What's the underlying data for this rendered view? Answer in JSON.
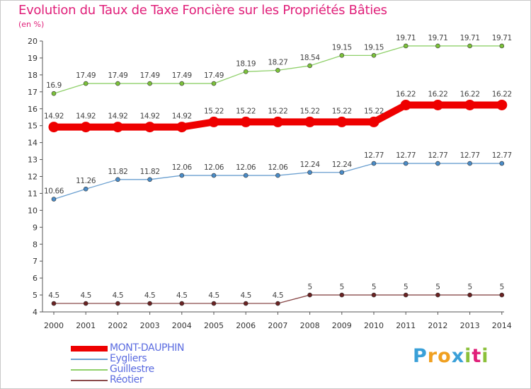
{
  "header": {
    "title": "Evolution du Taux de Taxe Foncière sur les Propriétés Bâties",
    "unit": "(en %)"
  },
  "brand": {
    "letters": [
      "P",
      "r",
      "o",
      "x",
      "i",
      "t",
      "i"
    ],
    "colors": [
      "#3aa0d8",
      "#f0a020",
      "#f0a020",
      "#3aa0d8",
      "#8bc03a",
      "#e0207a",
      "#8bc03a"
    ]
  },
  "chart_data": {
    "type": "line",
    "title": "Evolution du Taux de Taxe Foncière sur les Propriétés Bâties",
    "ylabel": "(en %)",
    "xlabel": "",
    "ylim": [
      4,
      20
    ],
    "yticks": [
      "4",
      "5",
      "6",
      "7",
      "8",
      "9",
      "10",
      "11",
      "12",
      "13",
      "14",
      "15",
      "16",
      "17",
      "18",
      "19",
      "20"
    ],
    "categories": [
      "2000",
      "2001",
      "2002",
      "2003",
      "2004",
      "2005",
      "2006",
      "2007",
      "2008",
      "2009",
      "2010",
      "2011",
      "2012",
      "2013",
      "2014"
    ],
    "series": [
      {
        "name": "Guillestre",
        "color": "#8fd06a",
        "marker": "#7cc23a",
        "emphasis": false,
        "values": [
          16.9,
          17.49,
          17.49,
          17.49,
          17.49,
          17.49,
          18.19,
          18.27,
          18.54,
          19.15,
          19.15,
          19.71,
          19.71,
          19.71,
          19.71
        ],
        "labels": [
          "16.9",
          "17.49",
          "17.49",
          "17.49",
          "17.49",
          "17.49",
          "18.19",
          "18.27",
          "18.54",
          "19.15",
          "19.15",
          "19.71",
          "19.71",
          "19.71",
          "19.71"
        ]
      },
      {
        "name": "Eygliers",
        "color": "#6a9fd0",
        "marker": "#4a8cc8",
        "emphasis": false,
        "values": [
          10.66,
          11.26,
          11.82,
          11.82,
          12.06,
          12.06,
          12.06,
          12.06,
          12.24,
          12.24,
          12.77,
          12.77,
          12.77,
          12.77,
          12.77
        ],
        "labels": [
          "10.66",
          "11.26",
          "11.82",
          "11.82",
          "12.06",
          "12.06",
          "12.06",
          "12.06",
          "12.24",
          "12.24",
          "12.77",
          "12.77",
          "12.77",
          "12.77",
          "12.77"
        ]
      },
      {
        "name": "Réotier",
        "color": "#8a4a4a",
        "marker": "#6a2222",
        "emphasis": false,
        "values": [
          4.5,
          4.5,
          4.5,
          4.5,
          4.5,
          4.5,
          4.5,
          4.5,
          5,
          5,
          5,
          5,
          5,
          5,
          5
        ],
        "labels": [
          "4.5",
          "4.5",
          "4.5",
          "4.5",
          "4.5",
          "4.5",
          "4.5",
          "4.5",
          "5",
          "5",
          "5",
          "5",
          "5",
          "5",
          "5"
        ]
      },
      {
        "name": "MONT-DAUPHIN",
        "color": "#ee0000",
        "marker": "#ee0000",
        "emphasis": true,
        "values": [
          14.92,
          14.92,
          14.92,
          14.92,
          14.92,
          15.22,
          15.22,
          15.22,
          15.22,
          15.22,
          15.22,
          16.22,
          16.22,
          16.22,
          16.22
        ],
        "labels": [
          "14.92",
          "14.92",
          "14.92",
          "14.92",
          "14.92",
          "15.22",
          "15.22",
          "15.22",
          "15.22",
          "15.22",
          "15.22",
          "16.22",
          "16.22",
          "16.22",
          "16.22"
        ]
      }
    ],
    "legend": [
      "MONT-DAUPHIN",
      "Eygliers",
      "Guillestre",
      "Réotier"
    ],
    "legend_position": "bottom-left",
    "grid": false
  }
}
